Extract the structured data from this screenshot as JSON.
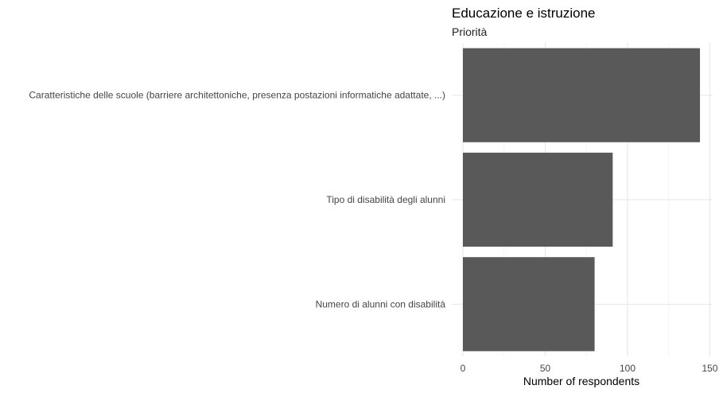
{
  "chart_data": {
    "type": "bar",
    "orientation": "horizontal",
    "title": "Educazione e istruzione",
    "subtitle": "Priorità",
    "xlabel": "Number of respondents",
    "ylabel": "",
    "categories": [
      "Caratteristiche delle scuole (barriere architettoniche, presenza postazioni informatiche adattate, ...)",
      "Tipo di disabilità degli alunni",
      "Numero di alunni con disabilità"
    ],
    "values": [
      144,
      91,
      80
    ],
    "xlim": [
      0,
      154
    ],
    "xticks": [
      0,
      50,
      100,
      150
    ],
    "grid": true,
    "bar_color": "#595959"
  }
}
